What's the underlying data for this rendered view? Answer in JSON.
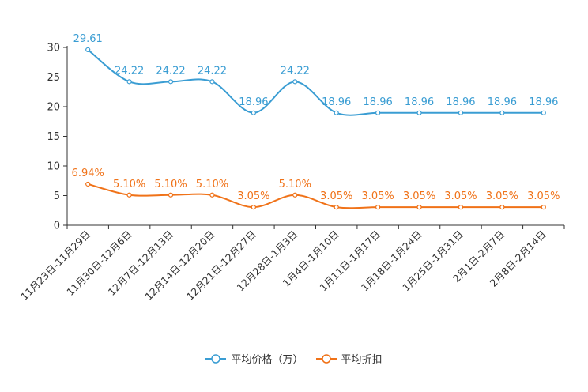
{
  "chart_data": {
    "type": "line",
    "categories": [
      "11月23日-11月29日",
      "11月30日-12月6日",
      "12月7日-12月13日",
      "12月14日-12月20日",
      "12月21日-12月27日",
      "12月28日-1月3日",
      "1月4日-1月10日",
      "1月11日-1月17日",
      "1月18日-1月24日",
      "1月25日-1月31日",
      "2月1日-2月7日",
      "2月8日-2月14日"
    ],
    "series": [
      {
        "name": "平均价格（万）",
        "color": "#3a9dd3",
        "values": [
          29.61,
          24.22,
          24.22,
          24.22,
          18.96,
          24.22,
          18.96,
          18.96,
          18.96,
          18.96,
          18.96,
          18.96
        ],
        "labels": [
          "29.61",
          "24.22",
          "24.22",
          "24.22",
          "18.96",
          "24.22",
          "18.96",
          "18.96",
          "18.96",
          "18.96",
          "18.96",
          "18.96"
        ]
      },
      {
        "name": "平均折扣",
        "color": "#f07218",
        "values": [
          6.94,
          5.1,
          5.1,
          5.1,
          3.05,
          5.1,
          3.05,
          3.05,
          3.05,
          3.05,
          3.05,
          3.05
        ],
        "labels": [
          "6.94%",
          "5.10%",
          "5.10%",
          "5.10%",
          "3.05%",
          "5.10%",
          "3.05%",
          "3.05%",
          "3.05%",
          "3.05%",
          "3.05%",
          "3.05%"
        ]
      }
    ],
    "ylim": [
      0,
      30
    ],
    "yticks": [
      0,
      5,
      10,
      15,
      20,
      25,
      30
    ],
    "legend_position": "bottom"
  }
}
